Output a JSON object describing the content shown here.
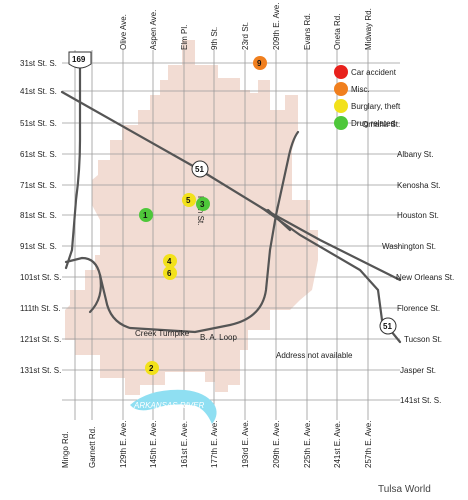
{
  "map": {
    "ew_streets": [
      {
        "id": "31st",
        "left": "31st St. S.",
        "right": ""
      },
      {
        "id": "41st",
        "left": "41st St. S.",
        "right": ""
      },
      {
        "id": "51st",
        "left": "51st St. S.",
        "right": "Omaha St."
      },
      {
        "id": "61st",
        "left": "61st St. S.",
        "right": "Albany St."
      },
      {
        "id": "71st",
        "left": "71st St. S.",
        "right": "Kenosha St."
      },
      {
        "id": "81st",
        "left": "81st St. S.",
        "right": "Houston St."
      },
      {
        "id": "91st",
        "left": "91st St. S.",
        "right": "Washington St."
      },
      {
        "id": "101st",
        "left": "101st St. S.",
        "right": "New Orleans St."
      },
      {
        "id": "111th",
        "left": "111th St. S.",
        "right": "Florence St."
      },
      {
        "id": "121st",
        "left": "121st St. S.",
        "right": "Tucson St."
      },
      {
        "id": "131st",
        "left": "131st St. S.",
        "right": "Jasper St."
      },
      {
        "id": "141st",
        "left": "",
        "right": "141st St. S."
      }
    ],
    "ns_streets": [
      {
        "id": "mingo",
        "top": "",
        "bottom": "Mingo Rd."
      },
      {
        "id": "garnett",
        "top": "",
        "bottom": "Garnett Rd."
      },
      {
        "id": "129th",
        "top": "Olive Ave.",
        "bottom": "129th E. Ave."
      },
      {
        "id": "145th",
        "top": "Aspen Ave.",
        "bottom": "145th E. Ave."
      },
      {
        "id": "161st",
        "top": "Elm Pl.",
        "bottom": "161st E. Ave."
      },
      {
        "id": "177th",
        "top": "9th St.",
        "bottom": "177th E. Ave."
      },
      {
        "id": "193rd",
        "top": "23rd St.",
        "bottom": "193rd E. Ave."
      },
      {
        "id": "209th",
        "top": "209th E. Ave.",
        "bottom": "209th E. Ave."
      },
      {
        "id": "225th",
        "top": "Evans Rd.",
        "bottom": "225th E. Ave."
      },
      {
        "id": "241st",
        "top": "Oneta Rd.",
        "bottom": "241st E. Ave."
      },
      {
        "id": "257th",
        "top": "Midway Rd.",
        "bottom": "257th E. Ave."
      }
    ],
    "main_st_label": "Main St.",
    "creek_turnpike_label": "Creek Turnpike",
    "loop_label": "B. A. Loop",
    "address_note": "Address not available",
    "river_label": "ARKANSAS RIVER",
    "highway_shields": [
      {
        "id": "us-169",
        "number": "169",
        "type": "us"
      },
      {
        "id": "hwy-51-mid",
        "number": "51",
        "type": "state"
      },
      {
        "id": "hwy-51-right",
        "number": "51",
        "type": "state"
      }
    ],
    "legend": [
      {
        "label": "Car accident",
        "color": "#e8211c"
      },
      {
        "label": "Misc.",
        "color": "#f07f1e"
      },
      {
        "label": "Burglary, theft",
        "color": "#f2e11b"
      },
      {
        "label": "Drug related",
        "color": "#4ec73a"
      }
    ],
    "incidents": [
      {
        "number": "1",
        "color": "#4ec73a"
      },
      {
        "number": "2",
        "color": "#f2e11b"
      },
      {
        "number": "3",
        "color": "#4ec73a"
      },
      {
        "number": "4",
        "color": "#f2e11b"
      },
      {
        "number": "5",
        "color": "#f2e11b"
      },
      {
        "number": "6",
        "color": "#f2e11b"
      },
      {
        "number": "9",
        "color": "#f07f1e"
      }
    ],
    "credit": "Tulsa World",
    "colors": {
      "grid": "#9a9a9a",
      "road": "#555555",
      "city_area": "#f2dcd3",
      "river": "#8fdff2"
    }
  }
}
